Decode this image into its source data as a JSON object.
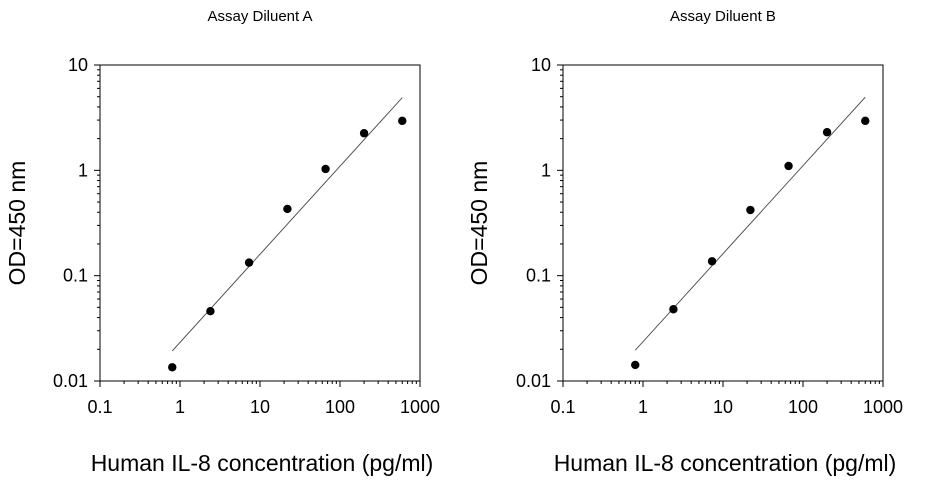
{
  "chart_data": [
    {
      "type": "scatter",
      "title": "Assay Diluent A",
      "xlabel": "Human IL-8 concentration (pg/ml)",
      "ylabel": "OD=450 nm",
      "xscale": "log",
      "yscale": "log",
      "xlim": [
        0.1,
        1000
      ],
      "ylim": [
        0.01,
        10
      ],
      "xticks": [
        0.1,
        1,
        10,
        100,
        1000
      ],
      "xtick_labels": [
        "0.1",
        "1",
        "10",
        "100",
        "1000"
      ],
      "yticks": [
        0.01,
        0.1,
        1,
        10
      ],
      "ytick_labels": [
        "0.01",
        "0.1",
        "1",
        "10"
      ],
      "grid": false,
      "points": [
        {
          "x": 0.8,
          "y": 0.0135
        },
        {
          "x": 2.4,
          "y": 0.046
        },
        {
          "x": 7.3,
          "y": 0.133
        },
        {
          "x": 22,
          "y": 0.43
        },
        {
          "x": 66,
          "y": 1.03
        },
        {
          "x": 200,
          "y": 2.25
        },
        {
          "x": 600,
          "y": 2.95
        }
      ],
      "fit_line": [
        {
          "x": 0.8,
          "y": 0.0193
        },
        {
          "x": 600,
          "y": 4.9
        }
      ]
    },
    {
      "type": "scatter",
      "title": "Assay Diluent B",
      "xlabel": "Human IL-8 concentration (pg/ml)",
      "ylabel": "OD=450 nm",
      "xscale": "log",
      "yscale": "log",
      "xlim": [
        0.1,
        1000
      ],
      "ylim": [
        0.01,
        10
      ],
      "xticks": [
        0.1,
        1,
        10,
        100,
        1000
      ],
      "xtick_labels": [
        "0.1",
        "1",
        "10",
        "100",
        "1000"
      ],
      "yticks": [
        0.01,
        0.1,
        1,
        10
      ],
      "ytick_labels": [
        "0.01",
        "0.1",
        "1",
        "10"
      ],
      "grid": false,
      "points": [
        {
          "x": 0.8,
          "y": 0.0142
        },
        {
          "x": 2.4,
          "y": 0.048
        },
        {
          "x": 7.3,
          "y": 0.137
        },
        {
          "x": 22,
          "y": 0.42
        },
        {
          "x": 66,
          "y": 1.1
        },
        {
          "x": 200,
          "y": 2.3
        },
        {
          "x": 600,
          "y": 2.95
        }
      ],
      "fit_line": [
        {
          "x": 0.8,
          "y": 0.0196
        },
        {
          "x": 600,
          "y": 4.95
        }
      ]
    }
  ]
}
